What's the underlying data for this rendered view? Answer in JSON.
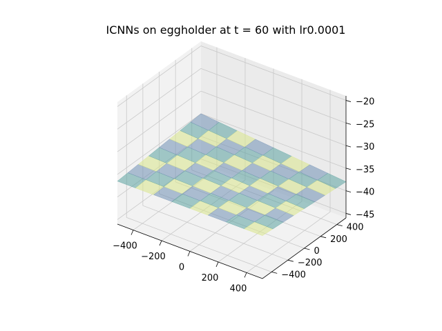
{
  "chart_data": {
    "type": "surface3d",
    "title": "ICNNs on eggholder at t = 60 with lr0.0001",
    "xlabel": "",
    "ylabel": "",
    "zlabel": "",
    "x_ticks": [
      "−400",
      "−200",
      "0",
      "200",
      "400"
    ],
    "y_ticks": [
      "−400",
      "−200",
      "0",
      "200",
      "400"
    ],
    "z_ticks": [
      "−20",
      "−25",
      "−30",
      "−35",
      "−40",
      "−45"
    ],
    "x_range": [
      -512,
      512
    ],
    "y_range": [
      -512,
      512
    ],
    "z_range": [
      -46,
      -19
    ],
    "grid": true,
    "colormap": "viridis",
    "surface": {
      "description_values": "nearly flat learned surface",
      "z_at_corners": {
        "x_min_y_min": -36.5,
        "x_max_y_min": -36.5,
        "x_min_y_max": -35.0,
        "x_max_y_max": -38.0
      }
    }
  },
  "colors": {
    "pane": "#f2f2f2",
    "pane_side": "#ebebeb",
    "grid": "#c8c8c8",
    "edge": "#000000",
    "surface_teal": "#5ba3a0",
    "surface_yellow": "#d8e68a",
    "surface_blue": "#6f8fb4"
  }
}
